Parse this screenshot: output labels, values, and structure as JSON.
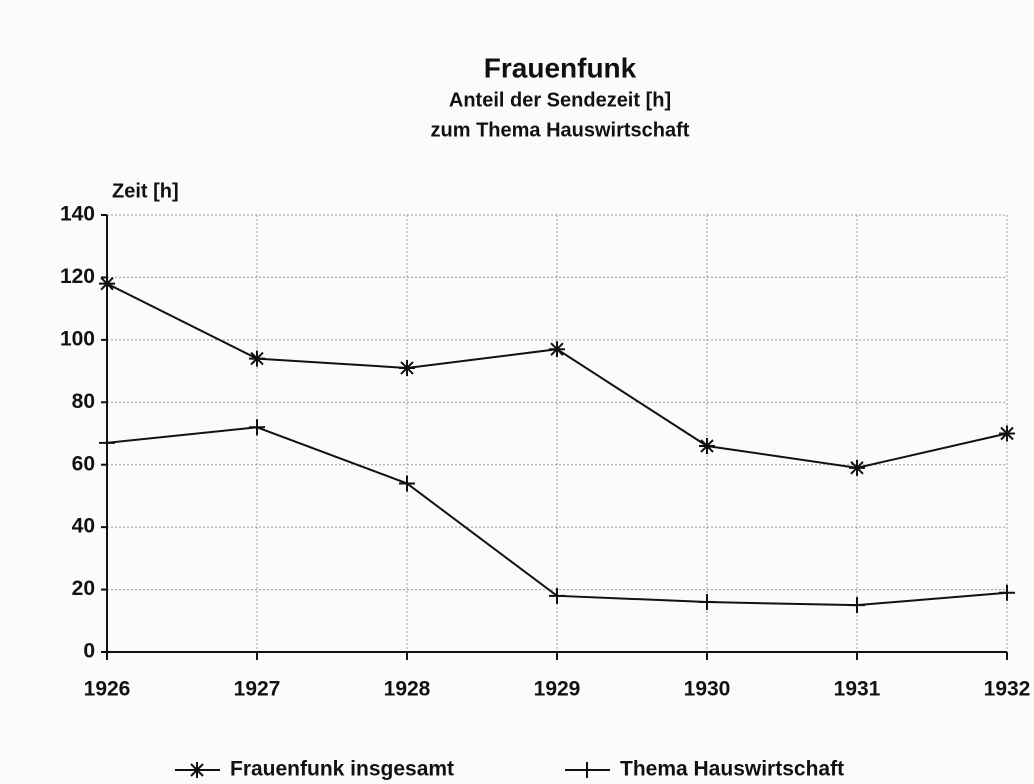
{
  "chart_data": {
    "type": "line",
    "title": "Frauenfunk",
    "subtitle": [
      "Anteil der Sendezeit [h]",
      "zum Thema Hauswirtschaft"
    ],
    "y_label": "Zeit [h]",
    "x": [
      1926,
      1927,
      1928,
      1929,
      1930,
      1931,
      1932
    ],
    "xlim": [
      1926,
      1932
    ],
    "xticks": [
      1926,
      1927,
      1928,
      1929,
      1930,
      1931,
      1932
    ],
    "ylim": [
      0,
      140
    ],
    "yticks": [
      0,
      20,
      40,
      60,
      80,
      100,
      120,
      140
    ],
    "grid": true,
    "legend": "bottom",
    "series": [
      {
        "name": "Frauenfunk insgesamt",
        "color": "#111111",
        "marker": "star",
        "values": [
          118,
          94,
          91,
          97,
          66,
          59,
          70
        ]
      },
      {
        "name": "Thema Hauswirtschaft",
        "color": "#111111",
        "marker": "plus",
        "values": [
          67,
          72,
          54,
          18,
          16,
          15,
          19
        ]
      }
    ]
  }
}
